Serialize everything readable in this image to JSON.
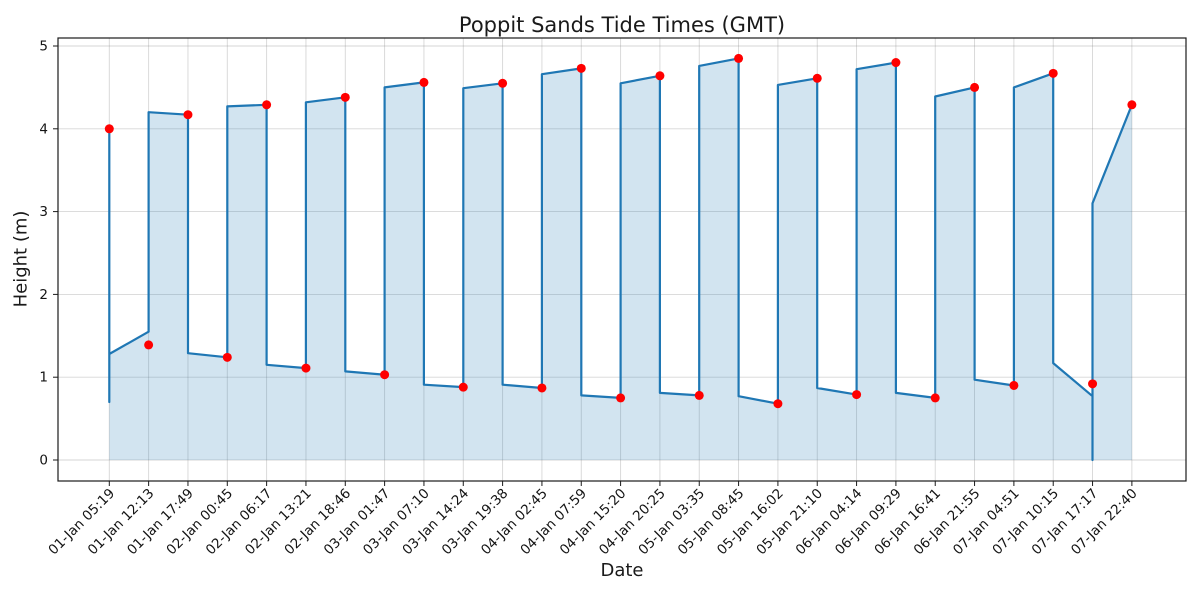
{
  "chart_data": {
    "type": "line",
    "title": "Poppit Sands Tide Times (GMT)",
    "xlabel": "Date",
    "ylabel": "Height (m)",
    "ylim": [
      -0.24,
      5.09
    ],
    "yticks": [
      0,
      1,
      2,
      3,
      4,
      5
    ],
    "grid": true,
    "legend": "none",
    "x_tick_labels": [
      "01-Jan 05:19",
      "01-Jan 12:13",
      "01-Jan 17:49",
      "02-Jan 00:45",
      "02-Jan 06:17",
      "02-Jan 13:21",
      "02-Jan 18:46",
      "03-Jan 01:47",
      "03-Jan 07:10",
      "03-Jan 14:24",
      "03-Jan 19:38",
      "04-Jan 02:45",
      "04-Jan 07:59",
      "04-Jan 15:20",
      "04-Jan 20:25",
      "05-Jan 03:35",
      "05-Jan 08:45",
      "05-Jan 16:02",
      "05-Jan 21:10",
      "06-Jan 04:14",
      "06-Jan 09:29",
      "06-Jan 16:41",
      "06-Jan 21:55",
      "07-Jan 04:51",
      "07-Jan 10:15",
      "07-Jan 17:17",
      "07-Jan 22:40"
    ],
    "series": [
      {
        "name": "tide-extreme-points",
        "type": "scatter",
        "marker_color": "#ff0000",
        "values": [
          4.0,
          1.39,
          4.17,
          1.24,
          4.29,
          1.11,
          4.38,
          1.03,
          4.56,
          0.88,
          4.55,
          0.87,
          4.73,
          0.75,
          4.64,
          0.78,
          4.85,
          0.68,
          4.61,
          0.79,
          4.8,
          0.75,
          4.5,
          0.9,
          4.67,
          0.92,
          4.29
        ]
      },
      {
        "name": "tide-curve",
        "type": "line",
        "line_color": "#1f77b4",
        "fill_color": "rgba(31,119,180,0.2)",
        "vertices": [
          [
            0,
            0.7
          ],
          [
            0,
            4.0
          ],
          [
            0,
            1.28
          ],
          [
            1,
            1.55
          ],
          [
            1,
            4.2
          ],
          [
            2,
            4.17
          ],
          [
            2,
            1.29
          ],
          [
            3,
            1.24
          ],
          [
            3,
            4.27
          ],
          [
            4,
            4.29
          ],
          [
            4,
            1.15
          ],
          [
            5,
            1.11
          ],
          [
            5,
            4.32
          ],
          [
            6,
            4.38
          ],
          [
            6,
            1.07
          ],
          [
            7,
            1.03
          ],
          [
            7,
            4.5
          ],
          [
            8,
            4.56
          ],
          [
            8,
            0.91
          ],
          [
            9,
            0.88
          ],
          [
            9,
            4.49
          ],
          [
            10,
            4.55
          ],
          [
            10,
            0.91
          ],
          [
            11,
            0.87
          ],
          [
            11,
            4.66
          ],
          [
            12,
            4.73
          ],
          [
            12,
            0.78
          ],
          [
            13,
            0.75
          ],
          [
            13,
            4.55
          ],
          [
            14,
            4.64
          ],
          [
            14,
            0.81
          ],
          [
            15,
            0.78
          ],
          [
            15,
            4.76
          ],
          [
            16,
            4.85
          ],
          [
            16,
            0.77
          ],
          [
            17,
            0.68
          ],
          [
            17,
            4.53
          ],
          [
            18,
            4.61
          ],
          [
            18,
            0.87
          ],
          [
            19,
            0.79
          ],
          [
            19,
            4.72
          ],
          [
            20,
            4.8
          ],
          [
            20,
            0.81
          ],
          [
            21,
            0.75
          ],
          [
            21,
            4.39
          ],
          [
            22,
            4.5
          ],
          [
            22,
            0.97
          ],
          [
            23,
            0.9
          ],
          [
            23,
            4.5
          ],
          [
            24,
            4.67
          ],
          [
            24,
            1.17
          ],
          [
            25,
            0.77
          ],
          [
            25,
            0.0
          ],
          [
            25,
            3.1
          ],
          [
            26,
            4.29
          ]
        ]
      }
    ],
    "colors": {
      "grid": "rgba(120,120,120,0.30)",
      "spine": "#1a1a1a",
      "tick_text": "#141414"
    }
  }
}
